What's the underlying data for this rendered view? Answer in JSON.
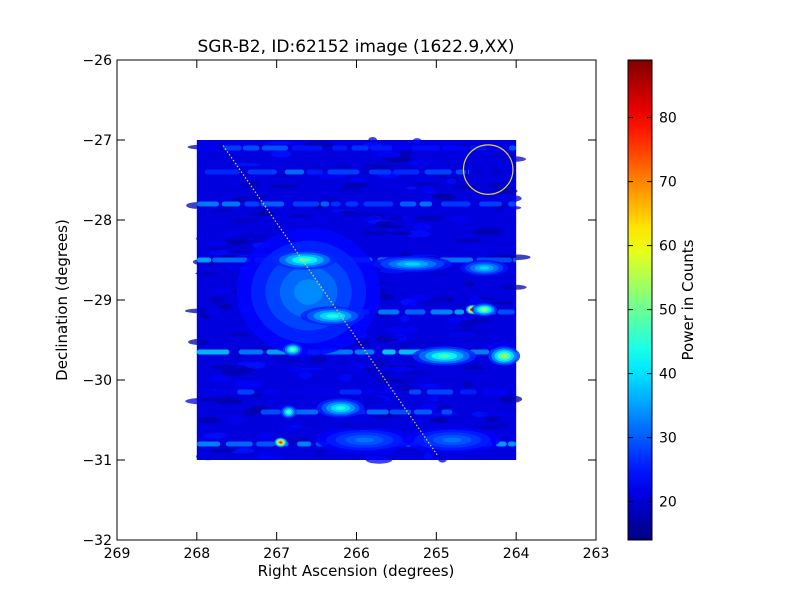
{
  "chart_data": {
    "type": "heatmap",
    "title": "SGR-B2, ID:62152 image (1622.9,XX)",
    "xlabel": "Right Ascension (degrees)",
    "ylabel": "Declination (degrees)",
    "xlim": [
      269,
      263
    ],
    "ylim": [
      -32,
      -26
    ],
    "x_ticks": [
      269,
      268,
      267,
      266,
      265,
      264,
      263
    ],
    "x_tick_labels": [
      "269",
      "268",
      "267",
      "266",
      "265",
      "264",
      "263"
    ],
    "y_ticks": [
      -26,
      -27,
      -28,
      -29,
      -30,
      -31,
      -32
    ],
    "y_tick_labels": [
      "−26",
      "−27",
      "−28",
      "−29",
      "−30",
      "−31",
      "−32"
    ],
    "image_extent": {
      "ra": [
        268.0,
        264.0
      ],
      "dec": [
        -31.0,
        -27.0
      ]
    },
    "colormap": "jet",
    "colorbar": {
      "label": "Power in Counts",
      "range": [
        14,
        89
      ],
      "ticks": [
        20,
        30,
        40,
        50,
        60,
        70,
        80
      ],
      "tick_labels": [
        "20",
        "30",
        "40",
        "50",
        "60",
        "70",
        "80"
      ]
    },
    "base_level": 21,
    "streaks": [
      {
        "dec": -27.1,
        "ra_from": 268.0,
        "ra_to": 264.0,
        "value": 26
      },
      {
        "dec": -27.4,
        "ra_from": 267.9,
        "ra_to": 264.6,
        "value": 28
      },
      {
        "dec": -27.8,
        "ra_from": 268.0,
        "ra_to": 264.0,
        "value": 30
      },
      {
        "dec": -28.5,
        "ra_from": 268.0,
        "ra_to": 264.0,
        "value": 32
      },
      {
        "dec": -29.15,
        "ra_from": 266.8,
        "ra_to": 264.0,
        "value": 33
      },
      {
        "dec": -29.65,
        "ra_from": 268.0,
        "ra_to": 264.0,
        "value": 36
      },
      {
        "dec": -30.15,
        "ra_from": 268.0,
        "ra_to": 264.0,
        "value": 25
      },
      {
        "dec": -30.4,
        "ra_from": 267.2,
        "ra_to": 264.8,
        "value": 30
      },
      {
        "dec": -30.8,
        "ra_from": 268.0,
        "ra_to": 264.0,
        "value": 33
      }
    ],
    "blobs": [
      {
        "ra": 266.6,
        "dec": -28.9,
        "sigma_ra": 0.45,
        "sigma_dec": 0.4,
        "value": 34
      },
      {
        "ra": 266.3,
        "dec": -29.2,
        "sigma_ra": 0.2,
        "sigma_dec": 0.06,
        "value": 45
      },
      {
        "ra": 266.2,
        "dec": -30.35,
        "sigma_ra": 0.15,
        "sigma_dec": 0.06,
        "value": 45
      },
      {
        "ra": 264.9,
        "dec": -29.7,
        "sigma_ra": 0.2,
        "sigma_dec": 0.06,
        "value": 48
      },
      {
        "ra": 264.15,
        "dec": -29.7,
        "sigma_ra": 0.1,
        "sigma_dec": 0.06,
        "value": 55
      },
      {
        "ra": 264.55,
        "dec": -29.12,
        "sigma_ra": 0.04,
        "sigma_dec": 0.03,
        "value": 88
      },
      {
        "ra": 264.4,
        "dec": -29.12,
        "sigma_ra": 0.08,
        "sigma_dec": 0.04,
        "value": 55
      },
      {
        "ra": 266.95,
        "dec": -30.78,
        "sigma_ra": 0.04,
        "sigma_dec": 0.03,
        "value": 80
      },
      {
        "ra": 266.85,
        "dec": -30.4,
        "sigma_ra": 0.05,
        "sigma_dec": 0.04,
        "value": 50
      },
      {
        "ra": 266.8,
        "dec": -29.62,
        "sigma_ra": 0.06,
        "sigma_dec": 0.04,
        "value": 52
      },
      {
        "ra": 266.65,
        "dec": -28.5,
        "sigma_ra": 0.2,
        "sigma_dec": 0.06,
        "value": 48
      },
      {
        "ra": 265.3,
        "dec": -28.55,
        "sigma_ra": 0.25,
        "sigma_dec": 0.05,
        "value": 40
      },
      {
        "ra": 264.4,
        "dec": -28.6,
        "sigma_ra": 0.15,
        "sigma_dec": 0.05,
        "value": 40
      },
      {
        "ra": 265.9,
        "dec": -30.75,
        "sigma_ra": 0.3,
        "sigma_dec": 0.08,
        "value": 32
      },
      {
        "ra": 264.8,
        "dec": -30.75,
        "sigma_ra": 0.3,
        "sigma_dec": 0.08,
        "value": 32
      }
    ],
    "overlays": {
      "circle": {
        "ra": 264.35,
        "dec": -27.37,
        "radius_deg": 0.31,
        "color": "#e8d23a"
      },
      "diagonal_track": {
        "from": {
          "ra": 267.67,
          "dec": -27.07
        },
        "to": {
          "ra": 264.98,
          "dec": -30.95
        },
        "color": "#e8d23a"
      }
    }
  }
}
